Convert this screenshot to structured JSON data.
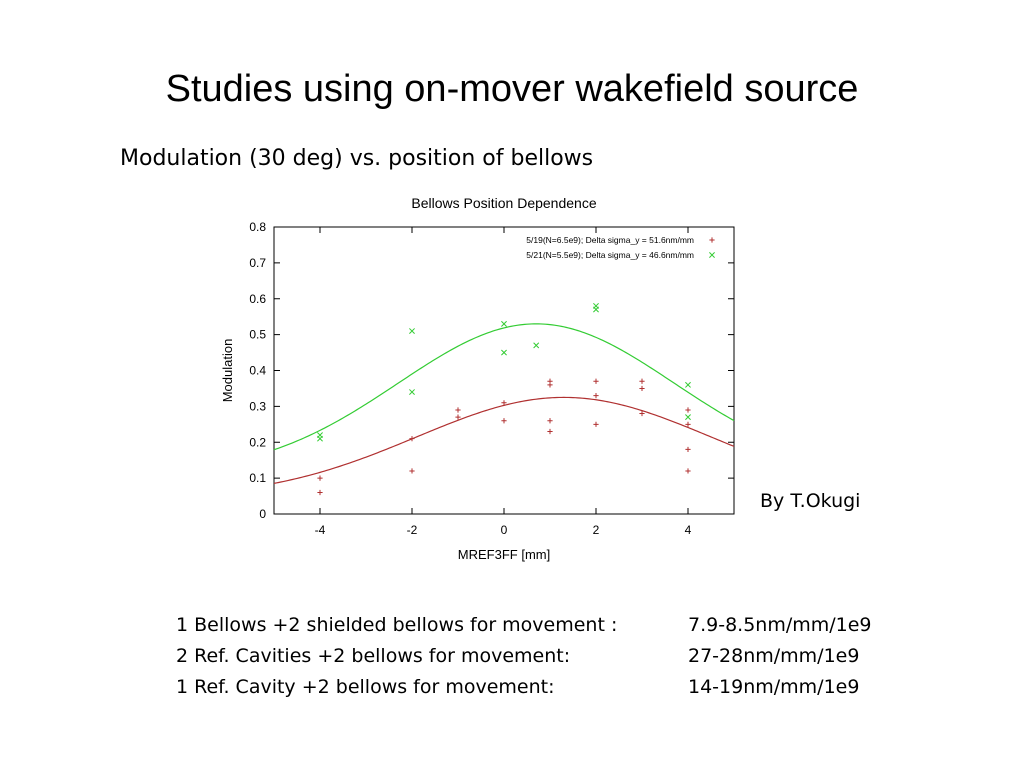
{
  "slide": {
    "title": "Studies using on-mover wakefield source",
    "subtitle": "Modulation (30 deg) vs. position of bellows",
    "credit": "By T.Okugi"
  },
  "notes": [
    {
      "desc": "1 Bellows +2 shielded bellows for movement :",
      "value": "7.9-8.5nm/mm/1e9"
    },
    {
      "desc": "2 Ref. Cavities +2 bellows for movement:",
      "value": "27-28nm/mm/1e9"
    },
    {
      "desc": "1 Ref. Cavity +2 bellows for movement:",
      "value": "14-19nm/mm/1e9"
    }
  ],
  "colors": {
    "red": "#b03030",
    "green": "#33cc33"
  },
  "chart_data": {
    "type": "scatter",
    "title": "Bellows Position Dependence",
    "xlabel": "MREF3FF [mm]",
    "ylabel": "Modulation",
    "xlim": [
      -5,
      5
    ],
    "ylim": [
      0,
      0.8
    ],
    "xticks": [
      -4,
      -2,
      0,
      2,
      4
    ],
    "yticks": [
      0,
      0.1,
      0.2,
      0.3,
      0.4,
      0.5,
      0.6,
      0.7,
      0.8
    ],
    "grid": false,
    "legend": "top-right",
    "series": [
      {
        "name": "5/19(N=6.5e9); Delta sigma_y = 51.6nm/mm",
        "marker": "+",
        "color": "#b03030",
        "points": [
          [
            -4,
            0.1
          ],
          [
            -4,
            0.06
          ],
          [
            -2,
            0.21
          ],
          [
            -2,
            0.12
          ],
          [
            -1,
            0.29
          ],
          [
            -1,
            0.27
          ],
          [
            0,
            0.31
          ],
          [
            0,
            0.26
          ],
          [
            1,
            0.37
          ],
          [
            1,
            0.36
          ],
          [
            1,
            0.26
          ],
          [
            1,
            0.23
          ],
          [
            2,
            0.37
          ],
          [
            2,
            0.33
          ],
          [
            2,
            0.25
          ],
          [
            3,
            0.37
          ],
          [
            3,
            0.35
          ],
          [
            3,
            0.28
          ],
          [
            4,
            0.29
          ],
          [
            4,
            0.25
          ],
          [
            4,
            0.18
          ],
          [
            4,
            0.12
          ]
        ],
        "fit": {
          "amplitude": 0.28,
          "center": 1.3,
          "width": 3.2,
          "offset": 0.045
        }
      },
      {
        "name": "5/21(N=5.5e9); Delta sigma_y = 46.6nm/mm",
        "marker": "x",
        "color": "#33cc33",
        "points": [
          [
            -4,
            0.22
          ],
          [
            -4,
            0.21
          ],
          [
            -2,
            0.51
          ],
          [
            -2,
            0.34
          ],
          [
            0,
            0.53
          ],
          [
            0,
            0.45
          ],
          [
            0.7,
            0.47
          ],
          [
            2,
            0.58
          ],
          [
            2,
            0.57
          ],
          [
            4,
            0.36
          ],
          [
            4,
            0.27
          ]
        ],
        "fit": {
          "amplitude": 0.42,
          "center": 0.7,
          "width": 3.0,
          "offset": 0.11
        }
      }
    ]
  }
}
